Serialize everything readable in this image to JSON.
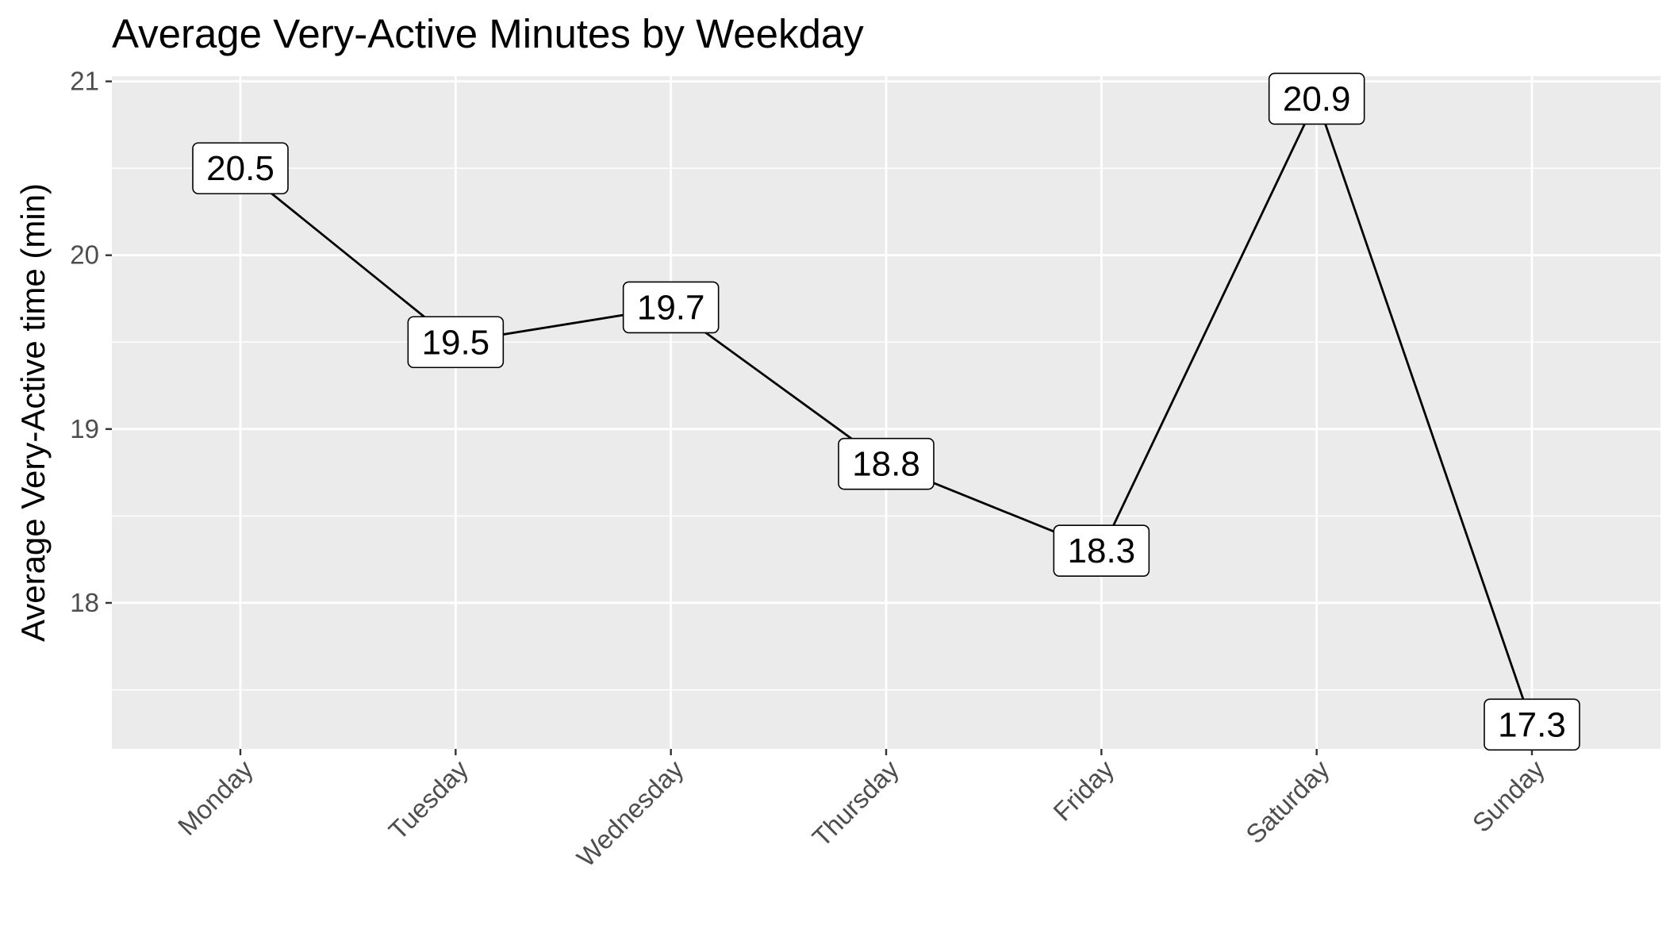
{
  "chart_data": {
    "type": "line",
    "title": "Average Very-Active Minutes by Weekday",
    "xlabel": "",
    "ylabel": "Average Very-Active time (min)",
    "categories": [
      "Monday",
      "Tuesday",
      "Wednesday",
      "Thursday",
      "Friday",
      "Saturday",
      "Sunday"
    ],
    "values": [
      20.5,
      19.5,
      19.7,
      18.8,
      18.3,
      20.9,
      17.3
    ],
    "data_labels": [
      "20.5",
      "19.5",
      "19.7",
      "18.8",
      "18.3",
      "20.9",
      "17.3"
    ],
    "y_ticks": [
      18,
      19,
      20,
      21
    ],
    "y_tick_labels": [
      "18",
      "19",
      "20",
      "21"
    ],
    "ylim": [
      17.16,
      21.03
    ],
    "grid": true,
    "legend": "none",
    "colors": {
      "panel_background": "#ebebeb",
      "grid": "#ffffff",
      "line": "#000000",
      "label_fill": "#ffffff",
      "tick_text": "#4d4d4d"
    }
  }
}
